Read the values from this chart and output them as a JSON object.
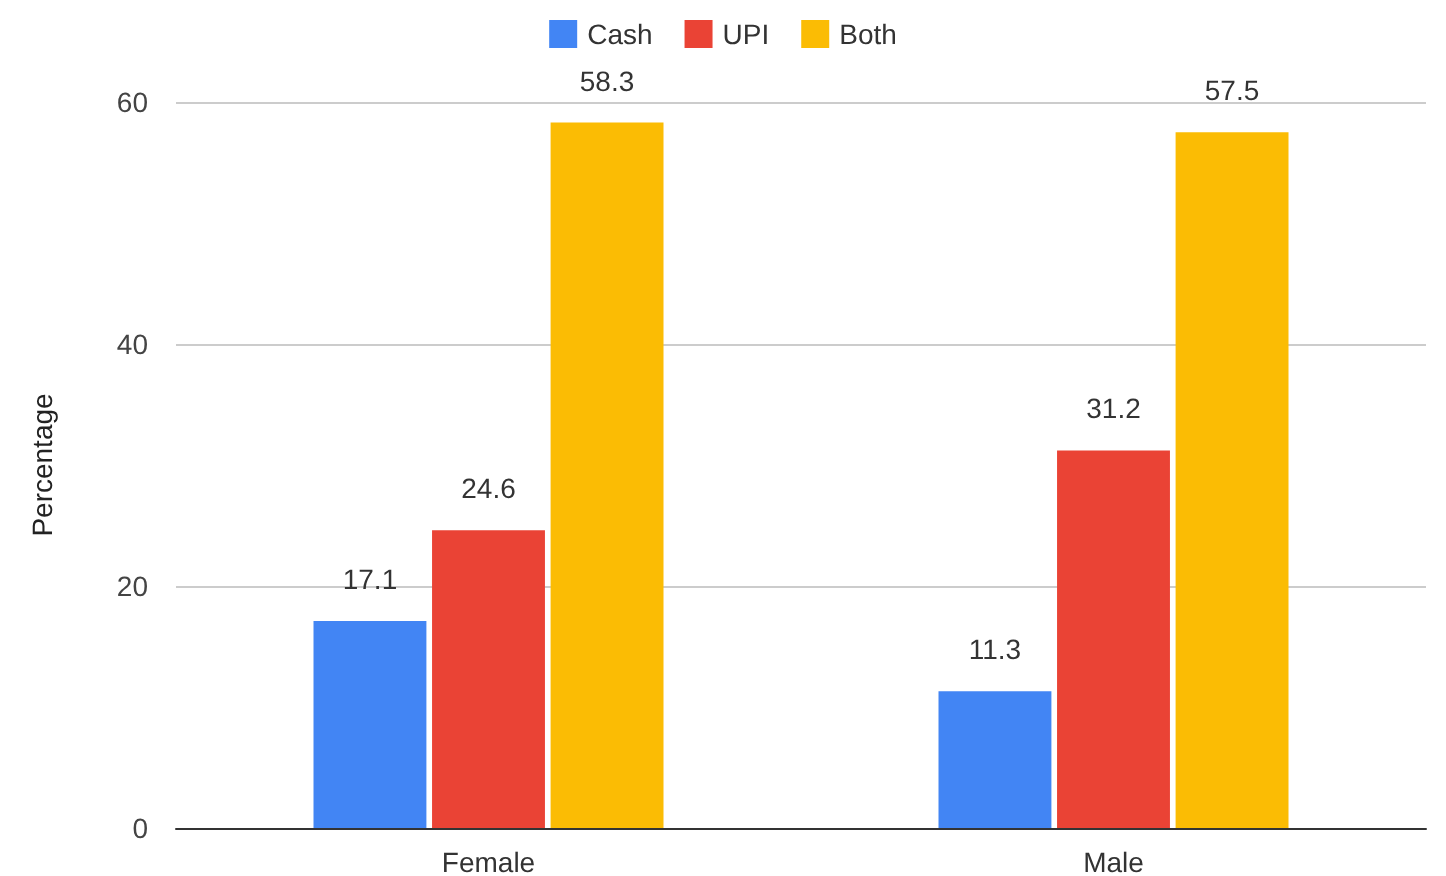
{
  "chart_data": {
    "type": "bar",
    "ylabel": "Percentage",
    "categories": [
      "Female",
      "Male"
    ],
    "series": [
      {
        "name": "Cash",
        "color": "#4285f4",
        "values": [
          17.1,
          11.3
        ]
      },
      {
        "name": "UPI",
        "color": "#ea4335",
        "values": [
          24.6,
          31.2
        ]
      },
      {
        "name": "Both",
        "color": "#fbbc04",
        "values": [
          58.3,
          57.5
        ]
      }
    ],
    "ylim": [
      0,
      60
    ],
    "yticks": [
      0,
      20,
      40,
      60
    ],
    "grid": "y",
    "legend": "top",
    "data_labels": true
  }
}
